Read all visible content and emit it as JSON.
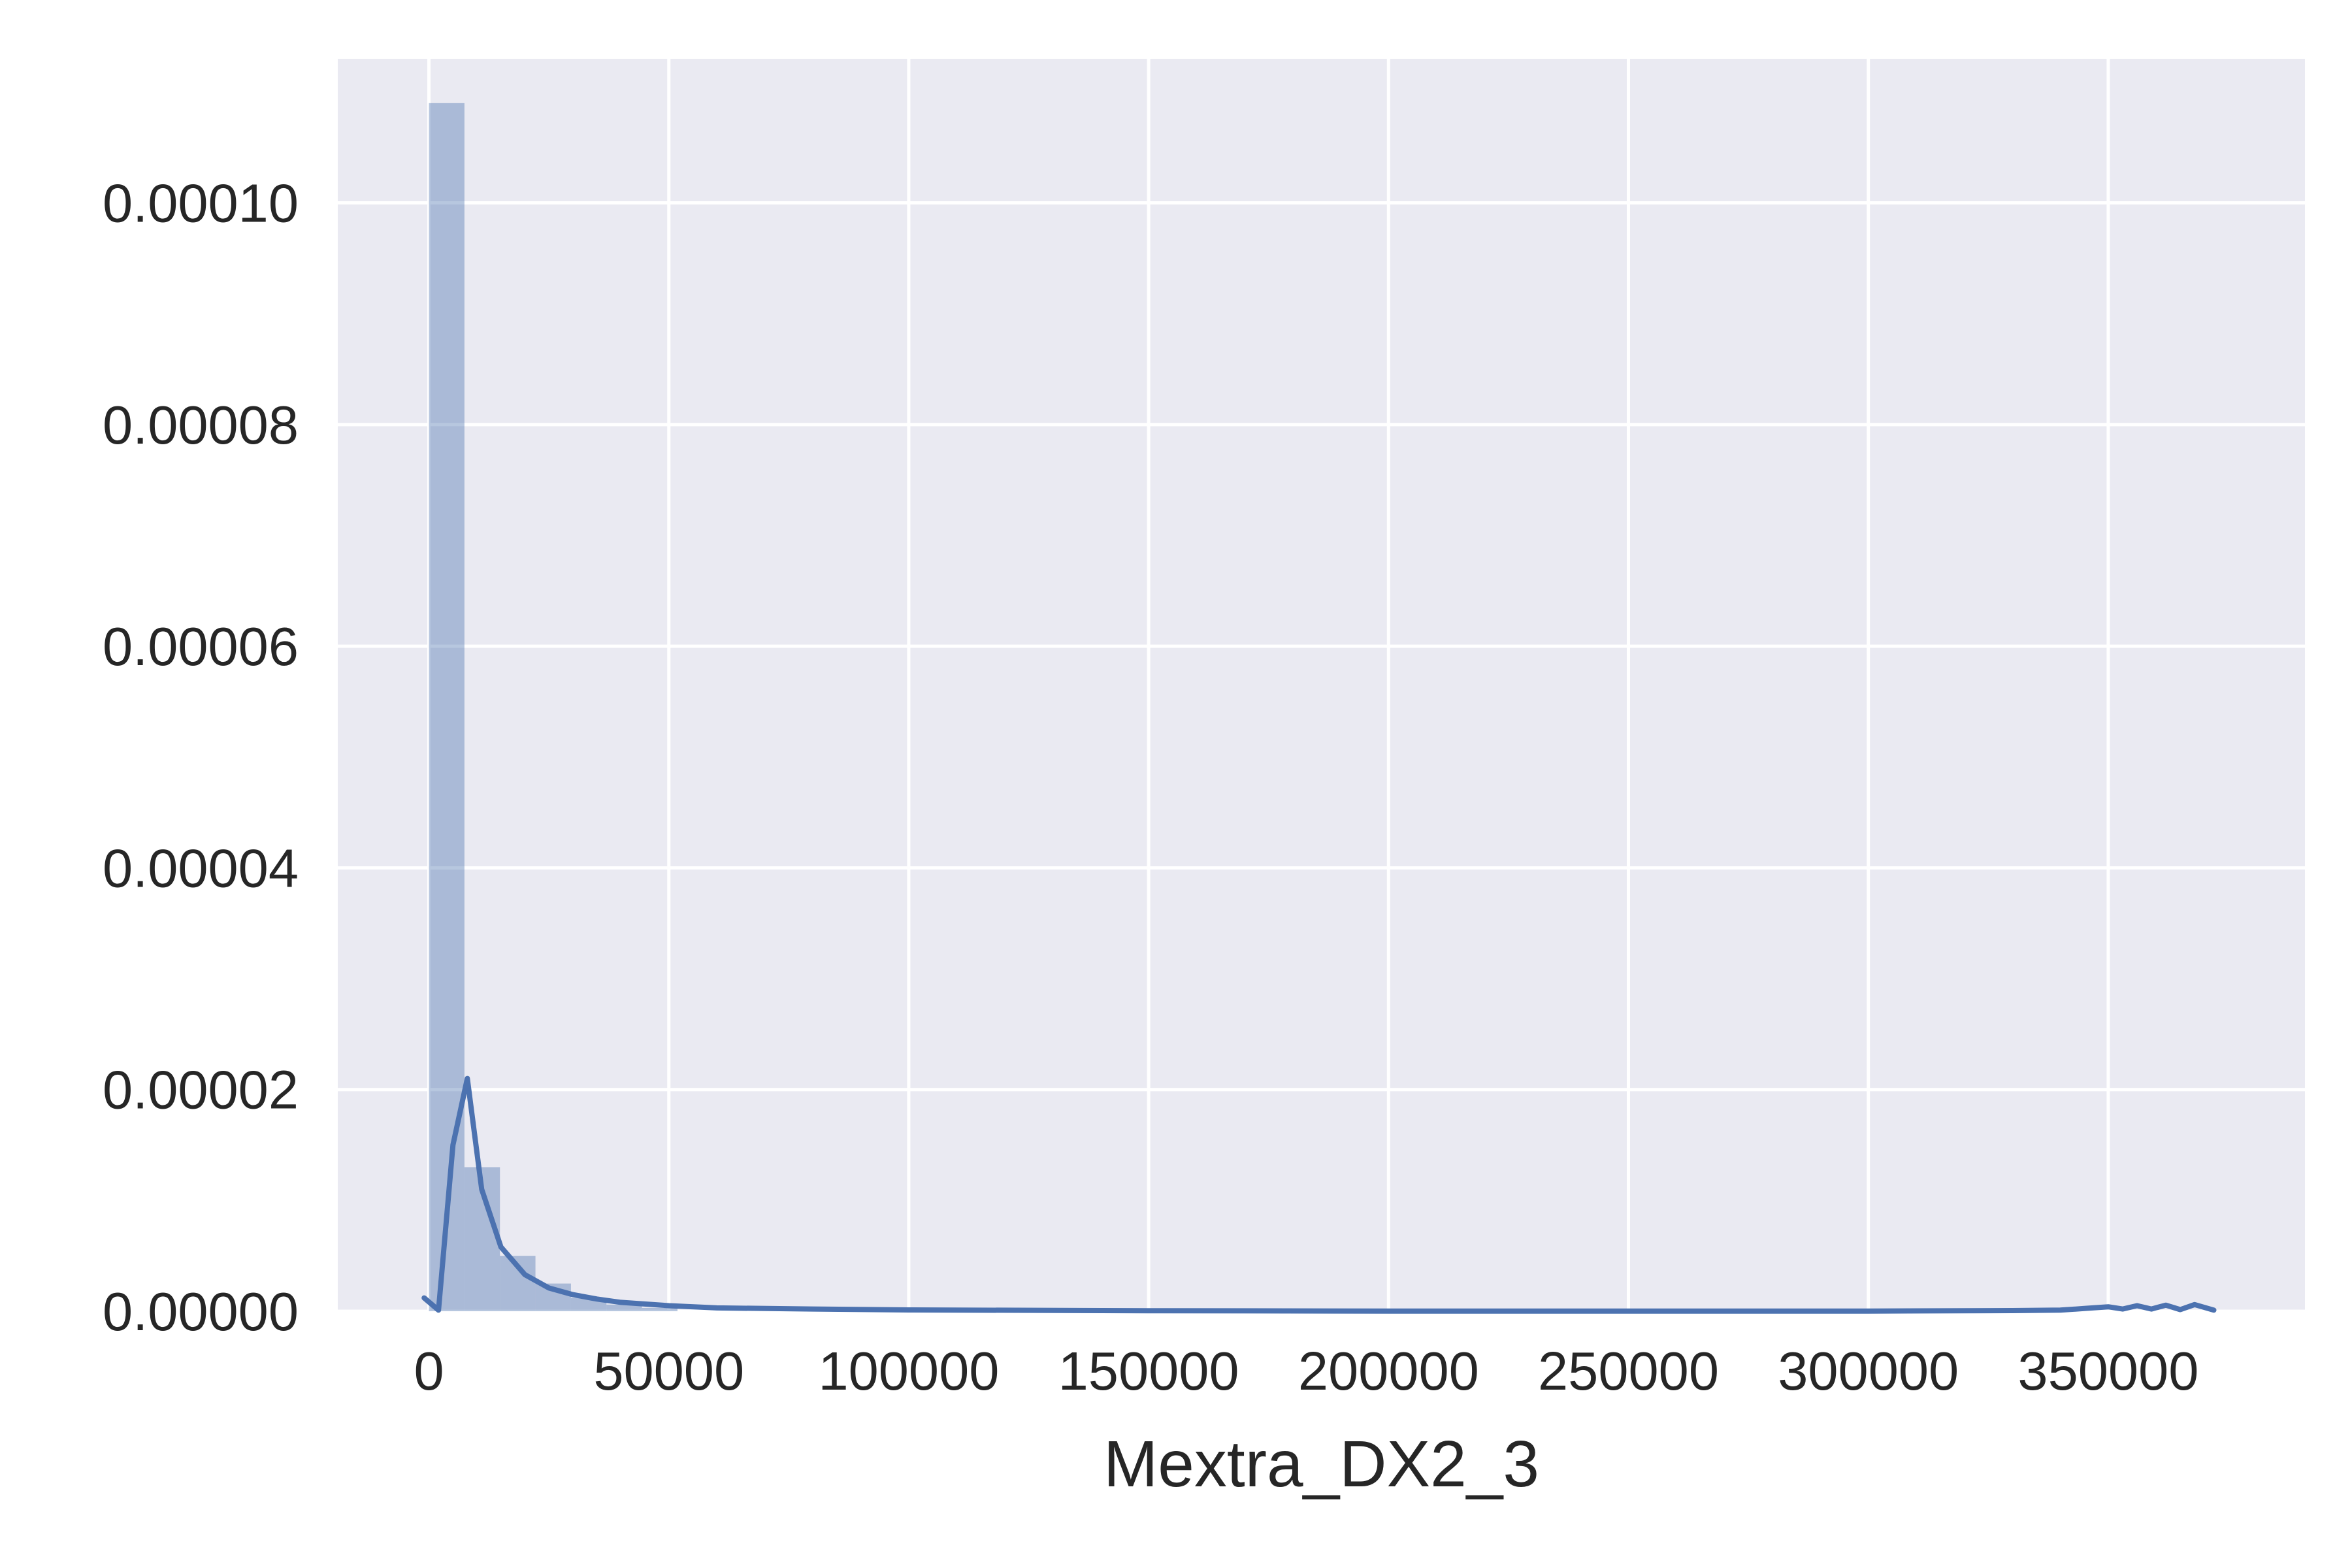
{
  "chart_data": {
    "type": "bar",
    "title": "",
    "xlabel": "Mextra_DX2_3",
    "ylabel": "",
    "xlim": [
      -19000,
      391000
    ],
    "ylim": [
      0,
      0.000113
    ],
    "grid": true,
    "x_ticks": [
      0,
      50000,
      100000,
      150000,
      200000,
      250000,
      300000,
      350000
    ],
    "x_tick_labels": [
      "0",
      "50000",
      "100000",
      "150000",
      "200000",
      "250000",
      "300000",
      "350000"
    ],
    "y_ticks": [
      0,
      2e-05,
      4e-05,
      6e-05,
      8e-05,
      0.0001
    ],
    "y_tick_labels": [
      "0.00000",
      "0.00002",
      "0.00004",
      "0.00006",
      "0.00008",
      "0.00010"
    ],
    "histogram": {
      "bins": [
        {
          "x0": 0,
          "x1": 7400,
          "density": 0.000109
        },
        {
          "x0": 7400,
          "x1": 14800,
          "density": 1.3e-05
        },
        {
          "x0": 14800,
          "x1": 22200,
          "density": 5e-06
        },
        {
          "x0": 22200,
          "x1": 29600,
          "density": 2.5e-06
        },
        {
          "x0": 29600,
          "x1": 37000,
          "density": 1.2e-06
        },
        {
          "x0": 37000,
          "x1": 44400,
          "density": 6e-07
        },
        {
          "x0": 44400,
          "x1": 51800,
          "density": 3e-07
        }
      ]
    },
    "kde": {
      "x": [
        -1000,
        2000,
        5000,
        8000,
        11000,
        15000,
        20000,
        25000,
        30000,
        35000,
        40000,
        50000,
        60000,
        80000,
        100000,
        150000,
        200000,
        250000,
        300000,
        330000,
        340000,
        345000,
        350000,
        353000,
        356000,
        359000,
        362000,
        365000,
        368000,
        372000
      ],
      "y": [
        1.2e-06,
        1e-07,
        1.5e-05,
        2.1e-05,
        1.1e-05,
        5.8e-06,
        3.3e-06,
        2.1e-06,
        1.5e-06,
        1.1e-06,
        8e-07,
        5e-07,
        3e-07,
        2e-07,
        1.2e-07,
        5e-08,
        2e-08,
        1e-08,
        2e-08,
        6e-08,
        1e-07,
        2.5e-07,
        4e-07,
        2e-07,
        5e-07,
        2e-07,
        5.5e-07,
        1.5e-07,
        6e-07,
        1e-07
      ]
    },
    "colors": {
      "background": "#eaeaf2",
      "grid": "#ffffff",
      "bar": "#4c72b0",
      "bar_opacity": 0.4,
      "line": "#4c72b0"
    }
  }
}
